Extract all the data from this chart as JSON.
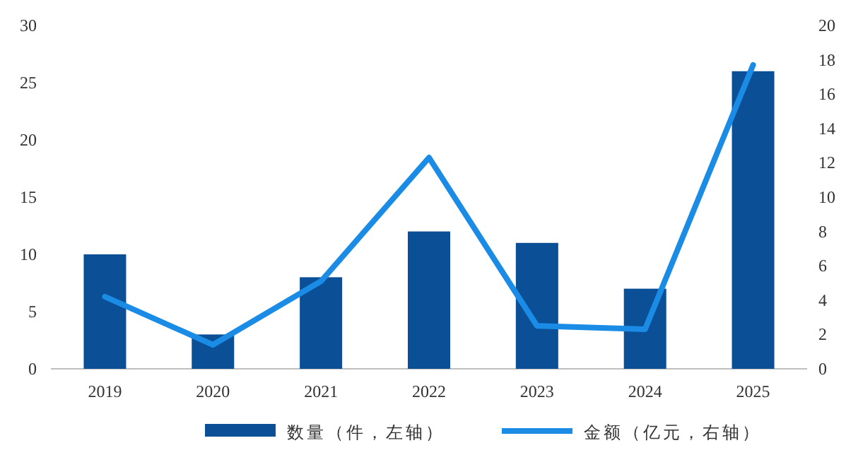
{
  "chart_data": {
    "type": "bar",
    "categories": [
      "2019",
      "2020",
      "2021",
      "2022",
      "2023",
      "2024",
      "2025"
    ],
    "series": [
      {
        "name": "数量（件，左轴）",
        "color": "#0b4f96",
        "values": [
          10,
          3,
          8,
          12,
          11,
          7,
          26
        ]
      },
      {
        "name": "金额（亿元，右轴）",
        "type": "line",
        "axis": "y2",
        "color": "#1a8ce6",
        "values": [
          4.2,
          1.4,
          5.1,
          12.3,
          2.5,
          2.3,
          17.7
        ]
      }
    ],
    "ylim": [
      0,
      30
    ],
    "yticks": [
      0,
      5,
      10,
      15,
      20,
      25,
      30
    ],
    "y2lim": [
      0,
      20
    ],
    "y2ticks": [
      0,
      2,
      4,
      6,
      8,
      10,
      12,
      14,
      16,
      18,
      20
    ],
    "legend": "bottom",
    "grid": false,
    "marker": "none",
    "line_style": "solid"
  }
}
